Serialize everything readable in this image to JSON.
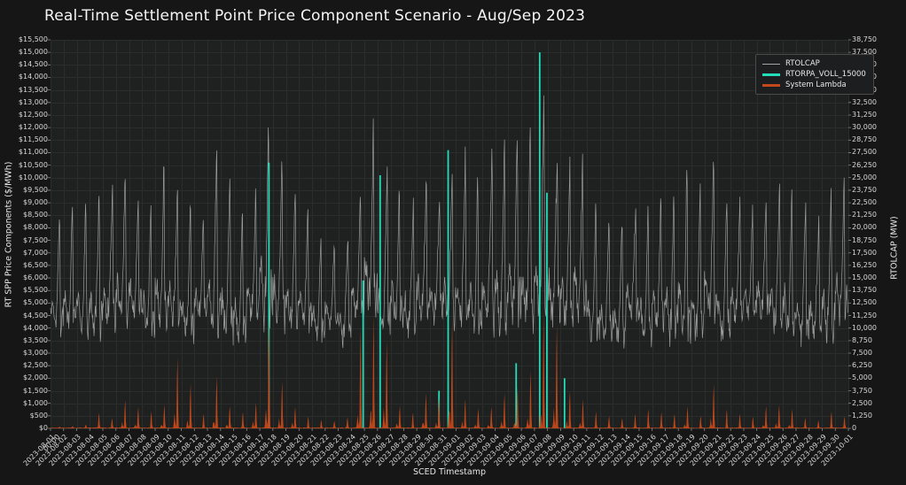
{
  "title": "Real-Time Settlement Point Price Component Scenario - Aug/Sep 2023",
  "chart_data": {
    "type": "line",
    "title": "Real-Time Settlement Point Price Component Scenario - Aug/Sep 2023",
    "xlabel": "SCED Timestamp",
    "ylabel_left": "RT SPP Price Components ($/MWh)",
    "ylabel_right": "RTOLCAP (MW)",
    "grid": true,
    "legend_position": "top-right",
    "left_axis": {
      "min": 0,
      "max": 15500,
      "step": 500,
      "prefix": "$",
      "tick_labels": [
        "$0",
        "$500",
        "$1,000",
        "$1,500",
        "$2,000",
        "$2,500",
        "$3,000",
        "$3,500",
        "$4,000",
        "$4,500",
        "$5,000",
        "$5,500",
        "$6,000",
        "$6,500",
        "$7,000",
        "$7,500",
        "$8,000",
        "$8,500",
        "$9,000",
        "$9,500",
        "$10,000",
        "$10,500",
        "$11,000",
        "$11,500",
        "$12,000",
        "$12,500",
        "$13,000",
        "$13,500",
        "$14,000",
        "$14,500",
        "$15,000",
        "$15,500"
      ]
    },
    "right_axis": {
      "min": 0,
      "max": 38750,
      "step": 1250,
      "tick_labels": [
        "0",
        "1,250",
        "2,500",
        "3,750",
        "5,000",
        "6,250",
        "7,500",
        "8,750",
        "10,000",
        "11,250",
        "12,500",
        "13,750",
        "15,000",
        "16,250",
        "17,500",
        "18,750",
        "20,000",
        "21,250",
        "22,500",
        "23,750",
        "25,000",
        "26,250",
        "27,500",
        "28,750",
        "30,000",
        "31,250",
        "32,500",
        "33,750",
        "35,000",
        "36,250",
        "37,500",
        "38,750"
      ]
    },
    "x_tick_labels": [
      "2023-08-01",
      "2023-08-02",
      "2023-08-03",
      "2023-08-04",
      "2023-08-05",
      "2023-08-06",
      "2023-08-07",
      "2023-08-08",
      "2023-08-09",
      "2023-08-10",
      "2023-08-11",
      "2023-08-12",
      "2023-08-13",
      "2023-08-14",
      "2023-08-15",
      "2023-08-16",
      "2023-08-17",
      "2023-08-18",
      "2023-08-19",
      "2023-08-20",
      "2023-08-21",
      "2023-08-22",
      "2023-08-23",
      "2023-08-24",
      "2023-08-25",
      "2023-08-26",
      "2023-08-27",
      "2023-08-28",
      "2023-08-29",
      "2023-08-30",
      "2023-08-31",
      "2023-09-01",
      "2023-09-02",
      "2023-09-03",
      "2023-09-04",
      "2023-09-05",
      "2023-09-06",
      "2023-09-07",
      "2023-09-08",
      "2023-09-09",
      "2023-09-10",
      "2023-09-11",
      "2023-09-12",
      "2023-09-13",
      "2023-09-14",
      "2023-09-15",
      "2023-09-16",
      "2023-09-17",
      "2023-09-18",
      "2023-09-19",
      "2023-09-20",
      "2023-09-21",
      "2023-09-22",
      "2023-09-23",
      "2023-09-24",
      "2023-09-25",
      "2023-09-26",
      "2023-09-27",
      "2023-09-28",
      "2023-09-29",
      "2023-09-30",
      "2023-10-01"
    ],
    "x_extra_tick_label": "00:00",
    "series": [
      {
        "name": "RTOLCAP",
        "color": "#a6a6a6",
        "axis": "right",
        "unit": "MW",
        "style": "line",
        "daily_low_range": [
          6800,
          9800
        ],
        "daily_peaks": [
          22400,
          22900,
          23200,
          24600,
          24300,
          26400,
          23600,
          23100,
          27200,
          24100,
          23000,
          21600,
          29100,
          25600,
          22200,
          24700,
          32400,
          28800,
          25100,
          22400,
          19900,
          19000,
          19600,
          24100,
          30900,
          26100,
          24500,
          23000,
          25100,
          23600,
          26600,
          28100,
          26200,
          28600,
          29600,
          30400,
          31500,
          33600,
          28100,
          27100,
          27400,
          23100,
          22100,
          21100,
          22600,
          23400,
          24100,
          25600,
          28400,
          24600,
          27600,
          24100,
          23100,
          22600,
          23600,
          24400,
          25100,
          22600,
          21200,
          24100,
          25000
        ]
      },
      {
        "name": "RTORPA_VOLL_15000",
        "color": "#25dcb8",
        "axis": "left",
        "unit": "$/MWh",
        "style": "spike",
        "spikes": [
          {
            "date": "2023-08-17",
            "time_frac": 0.7,
            "value": 10600
          },
          {
            "date": "2023-08-24",
            "time_frac": 0.9,
            "value": 5900
          },
          {
            "date": "2023-08-26",
            "time_frac": 0.2,
            "value": 10100
          },
          {
            "date": "2023-08-30",
            "time_frac": 0.7,
            "value": 1500
          },
          {
            "date": "2023-08-31",
            "time_frac": 0.4,
            "value": 11100
          },
          {
            "date": "2023-09-05",
            "time_frac": 0.6,
            "value": 2600
          },
          {
            "date": "2023-09-07",
            "time_frac": 0.4,
            "value": 15000
          },
          {
            "date": "2023-09-07",
            "time_frac": 0.95,
            "value": 9400
          },
          {
            "date": "2023-09-09",
            "time_frac": 0.3,
            "value": 2000
          }
        ]
      },
      {
        "name": "System Lambda",
        "color": "#c4491a",
        "axis": "left",
        "unit": "$/MWh",
        "style": "area-spike",
        "base": 25,
        "daily_peaks": [
          60,
          80,
          150,
          650,
          400,
          1200,
          900,
          700,
          1000,
          3050,
          1900,
          600,
          2250,
          950,
          700,
          1100,
          4800,
          2000,
          900,
          500,
          350,
          300,
          450,
          4400,
          4900,
          3800,
          950,
          650,
          1500,
          1300,
          4750,
          1250,
          850,
          900,
          1500,
          1800,
          2500,
          5000,
          4500,
          1600,
          1250,
          700,
          500,
          420,
          600,
          800,
          700,
          600,
          950,
          520,
          1900,
          800,
          600,
          500,
          950,
          1000,
          820,
          420,
          320,
          720,
          500
        ]
      }
    ]
  }
}
